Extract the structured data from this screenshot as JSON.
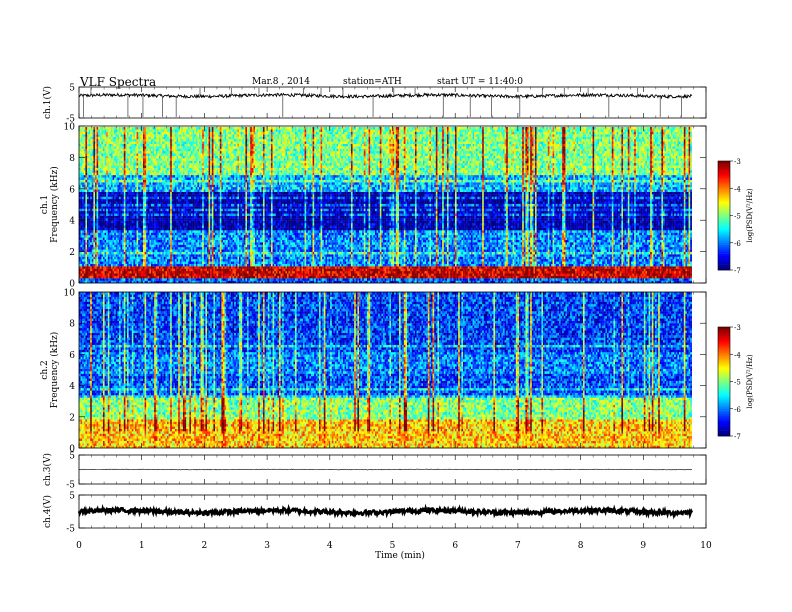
{
  "header": {
    "title": "VLF  Spectra",
    "date": "Mar.8  , 2014",
    "station": "station=ATH",
    "start": "start  UT  =   11:40:0"
  },
  "chart_data": [
    {
      "type": "line",
      "id": "ch1",
      "ylabel": "ch.1(V)",
      "ylim": [
        -5,
        5
      ],
      "yticks": [
        "5",
        "-5"
      ],
      "xlim": [
        0,
        10
      ],
      "baseline": 2.2,
      "noise": 0.25,
      "spikes": [
        0.07,
        0.19,
        0.78,
        1.02,
        1.33,
        1.55,
        1.93,
        2.43,
        2.87,
        3.25,
        3.58,
        3.86,
        4.21,
        4.69,
        5.02,
        5.36,
        5.81,
        6.24,
        6.58,
        7.03,
        7.39,
        7.74,
        8.12,
        8.45,
        8.91,
        9.27,
        9.61
      ]
    },
    {
      "type": "heatmap",
      "id": "ch1spec",
      "ylabel": "ch.1\nFrequency (kHz)",
      "ylim": [
        0,
        10
      ],
      "yticks": [
        "0",
        "2",
        "4",
        "6",
        "8",
        "10"
      ],
      "xlim": [
        0,
        9.8
      ],
      "colorbar": {
        "label": "log(PSD(V²/Hz)",
        "range": [
          -7,
          -3
        ],
        "ticks": [
          "-3",
          "-4",
          "-5",
          "-6",
          "-7"
        ]
      },
      "bands": [
        {
          "f": [
            0.0,
            0.35
          ],
          "level": -6.2
        },
        {
          "f": [
            0.35,
            1.0
          ],
          "level": -3.3
        },
        {
          "f": [
            1.0,
            3.3
          ],
          "level": -6.0
        },
        {
          "f": [
            3.3,
            5.8
          ],
          "level": -6.9
        },
        {
          "f": [
            5.8,
            6.9
          ],
          "level": -5.8
        },
        {
          "f": [
            6.9,
            10.0
          ],
          "level": -5.0
        }
      ]
    },
    {
      "type": "heatmap",
      "id": "ch2spec",
      "ylabel": "ch.2\nFrequency (kHz)",
      "ylim": [
        0,
        10
      ],
      "yticks": [
        "0",
        "2",
        "4",
        "6",
        "8",
        "10"
      ],
      "xlim": [
        0,
        9.8
      ],
      "colorbar": {
        "label": "log(PSD(V²/Hz)",
        "range": [
          -7,
          -3
        ],
        "ticks": [
          "-3",
          "-4",
          "-5",
          "-6",
          "-7"
        ]
      },
      "bands": [
        {
          "f": [
            0.0,
            1.8
          ],
          "level": -4.3
        },
        {
          "f": [
            1.8,
            3.2
          ],
          "level": -5.0
        },
        {
          "f": [
            3.2,
            4.8
          ],
          "level": -6.2
        },
        {
          "f": [
            4.8,
            6.2
          ],
          "level": -6.0
        },
        {
          "f": [
            6.2,
            10.0
          ],
          "level": -6.3
        }
      ]
    },
    {
      "type": "line",
      "id": "ch3",
      "ylabel": "ch.3(V)",
      "ylim": [
        -5,
        5
      ],
      "yticks": [
        "5",
        "-5"
      ],
      "xlim": [
        0,
        10
      ],
      "baseline": 0.0,
      "noise": 0.05,
      "spikes": []
    },
    {
      "type": "line",
      "id": "ch4",
      "ylabel": "ch.4(V)",
      "ylim": [
        -5,
        5
      ],
      "yticks": [
        "5",
        "-5"
      ],
      "xlim": [
        0,
        10
      ],
      "baseline": 0.0,
      "noise": 0.35,
      "spikes": []
    }
  ],
  "xaxis": {
    "label": "Time  (min)",
    "ticks": [
      "0",
      "1",
      "2",
      "3",
      "4",
      "5",
      "6",
      "7",
      "8",
      "9",
      "10"
    ]
  }
}
